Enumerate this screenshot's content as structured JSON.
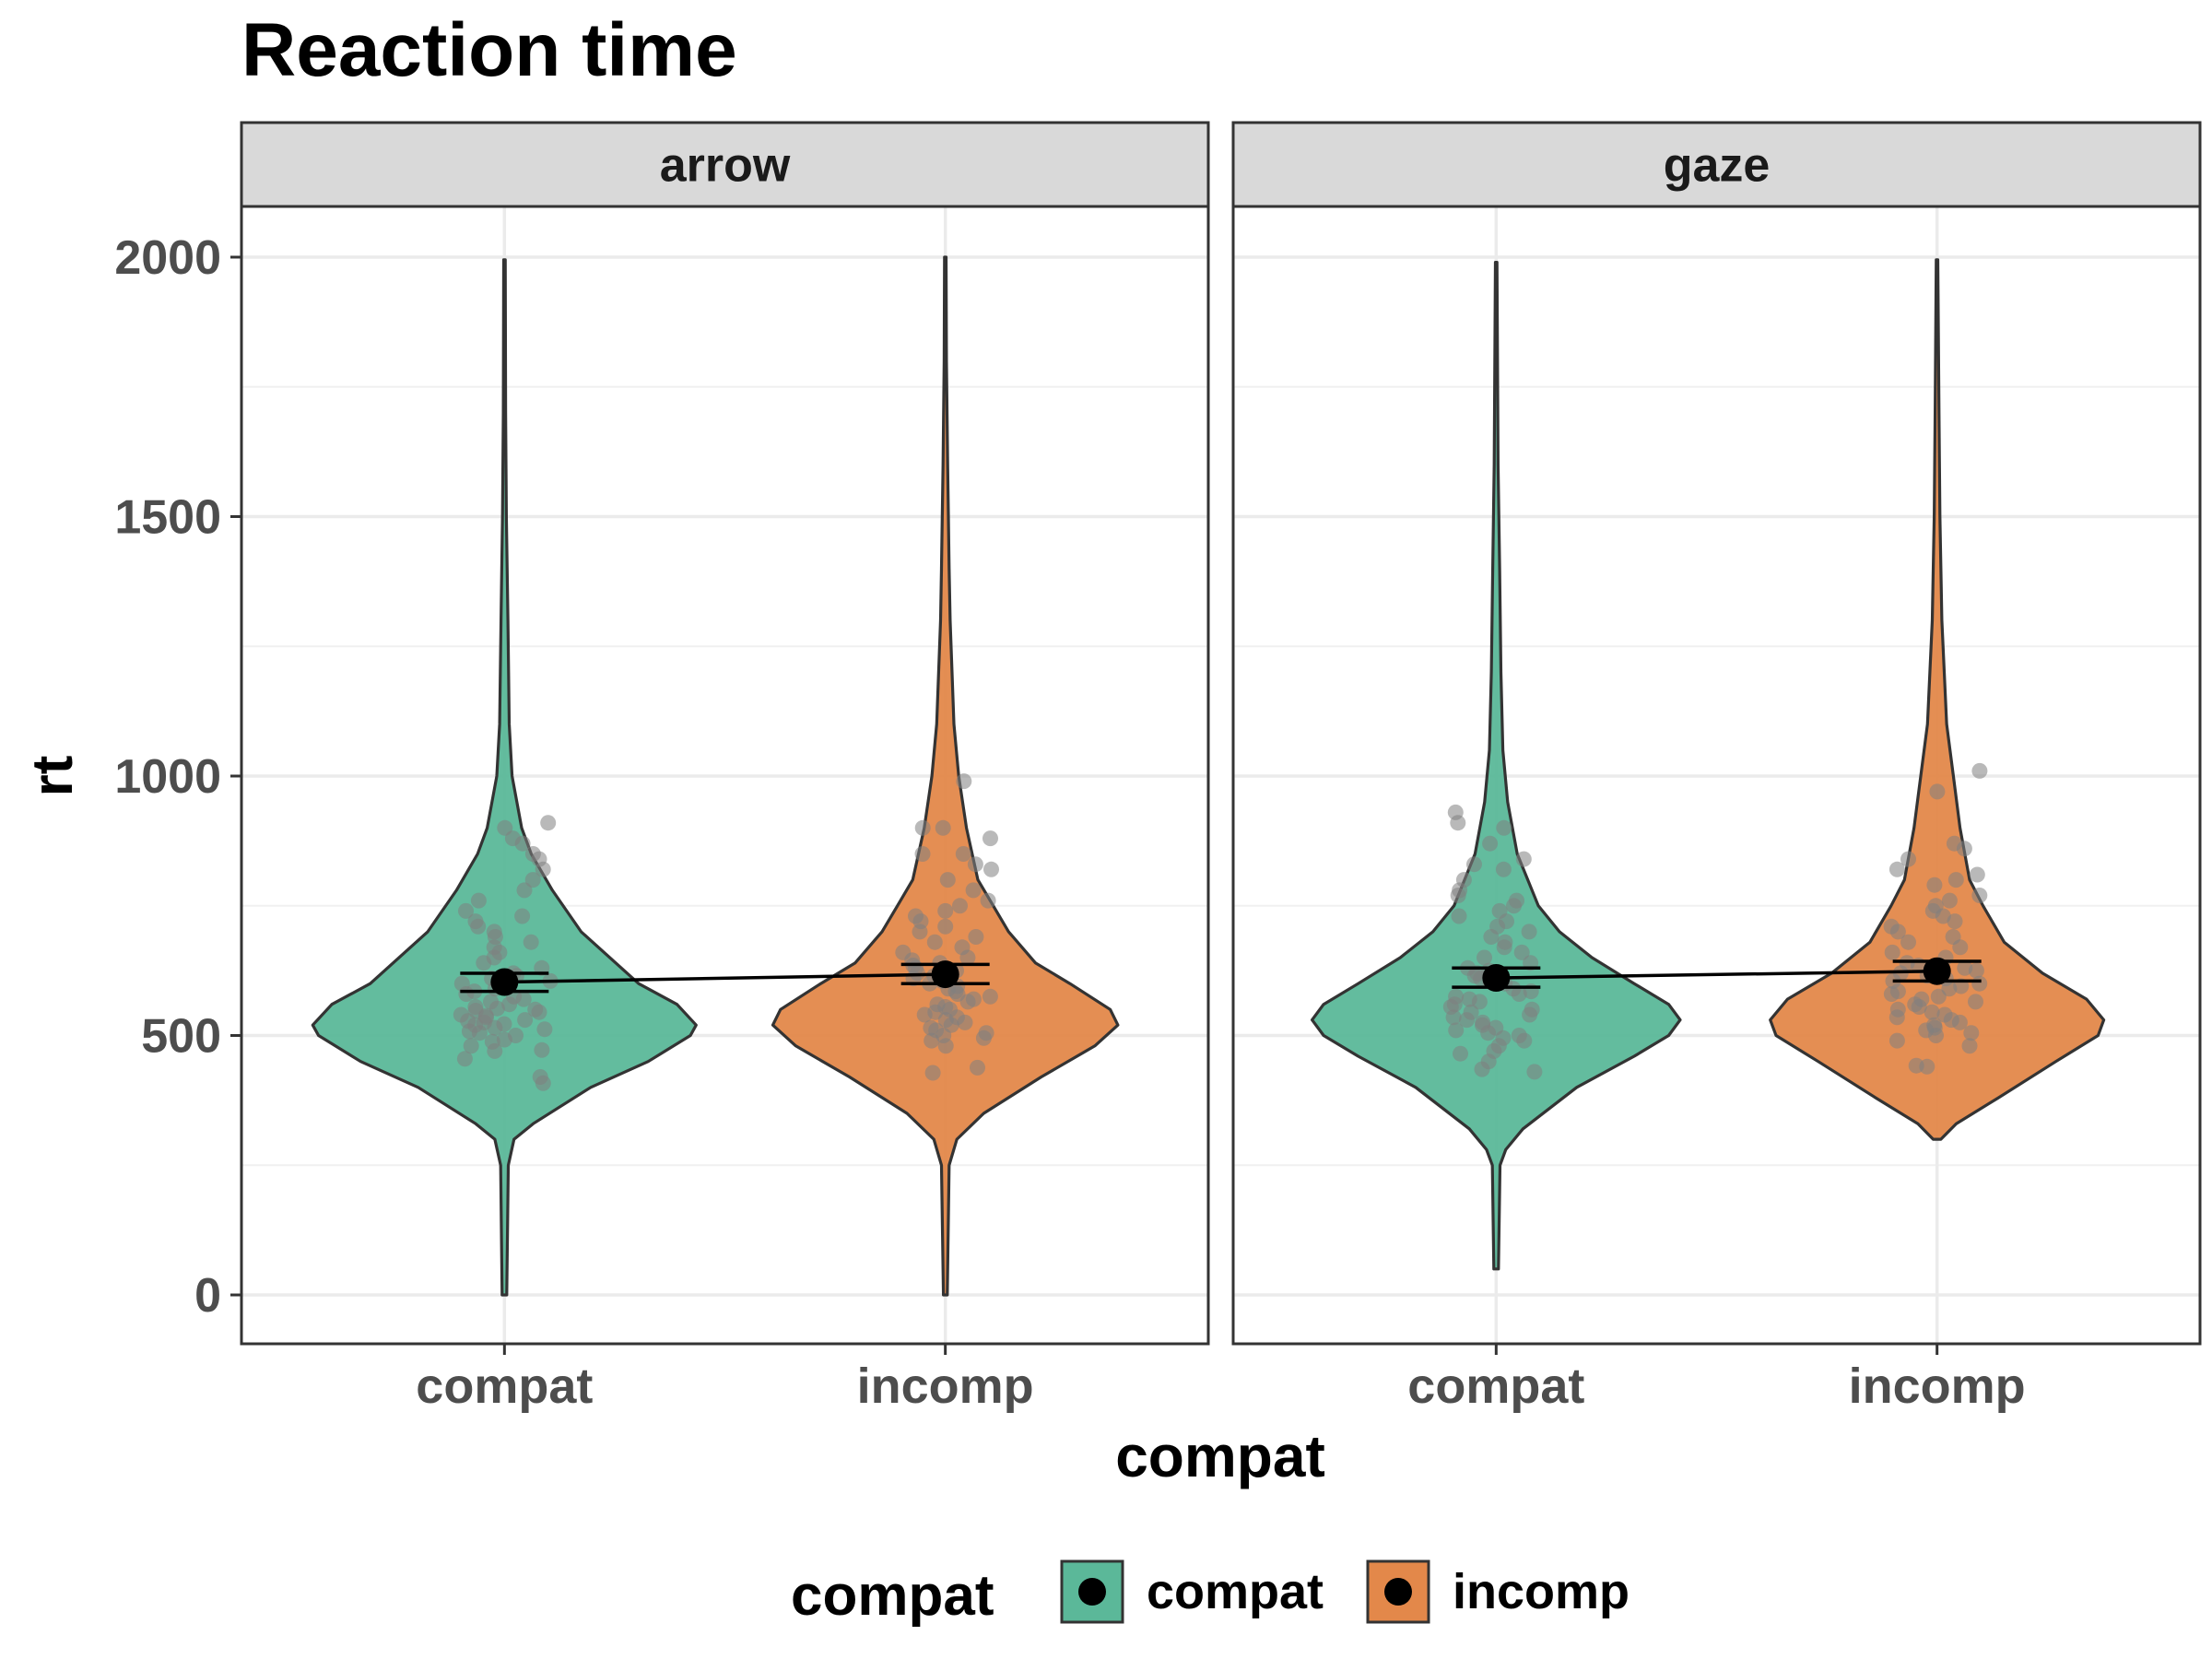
{
  "chart_data": {
    "type": "violin",
    "title": "Reaction time",
    "xlabel": "compat",
    "ylabel": "rt",
    "ylim": [
      -100,
      2100
    ],
    "yticks": [
      0,
      500,
      1000,
      1500,
      2000
    ],
    "categories": [
      "compat",
      "incomp"
    ],
    "colors": {
      "compat": "#5BB899",
      "incomp": "#E3884A"
    },
    "legend": {
      "title": "compat",
      "position": "bottom",
      "entries": [
        "compat",
        "incomp"
      ]
    },
    "panels": [
      {
        "label": "arrow",
        "groups": [
          {
            "category": "compat",
            "min": 0,
            "max": 1995,
            "mean": 603,
            "ci": [
              585,
              620
            ],
            "profile": [
              [
                0,
                0.012
              ],
              [
                250,
                0.02
              ],
              [
                300,
                0.05
              ],
              [
                330,
                0.15
              ],
              [
                400,
                0.45
              ],
              [
                450,
                0.75
              ],
              [
                500,
                0.97
              ],
              [
                520,
                1.0
              ],
              [
                560,
                0.9
              ],
              [
                600,
                0.7
              ],
              [
                700,
                0.4
              ],
              [
                780,
                0.25
              ],
              [
                850,
                0.14
              ],
              [
                900,
                0.09
              ],
              [
                1000,
                0.04
              ],
              [
                1100,
                0.025
              ],
              [
                1300,
                0.018
              ],
              [
                1500,
                0.01
              ],
              [
                1700,
                0.006
              ],
              [
                1995,
                0.004
              ]
            ],
            "points": [
              420,
              408,
              455,
              470,
              472,
              480,
              488,
              492,
              500,
              505,
              508,
              512,
              515,
              520,
              522,
              525,
              528,
              530,
              535,
              538,
              540,
              545,
              548,
              550,
              552,
              555,
              560,
              565,
              570,
              575,
              580,
              585,
              590,
              600,
              605,
              610,
              615,
              620,
              630,
              640,
              650,
              660,
              670,
              680,
              690,
              700,
              710,
              720,
              730,
              740,
              760,
              780,
              800,
              820,
              840,
              850,
              870,
              880,
              900,
              910
            ]
          },
          {
            "category": "incomp",
            "min": 0,
            "max": 2000,
            "mean": 618,
            "ci": [
              600,
              637
            ],
            "profile": [
              [
                0,
                0.01
              ],
              [
                250,
                0.02
              ],
              [
                300,
                0.06
              ],
              [
                350,
                0.2
              ],
              [
                420,
                0.5
              ],
              [
                480,
                0.78
              ],
              [
                520,
                0.9
              ],
              [
                550,
                0.86
              ],
              [
                600,
                0.65
              ],
              [
                640,
                0.47
              ],
              [
                700,
                0.33
              ],
              [
                750,
                0.25
              ],
              [
                800,
                0.17
              ],
              [
                900,
                0.11
              ],
              [
                1000,
                0.07
              ],
              [
                1100,
                0.045
              ],
              [
                1300,
                0.025
              ],
              [
                1400,
                0.02
              ],
              [
                1600,
                0.012
              ],
              [
                1800,
                0.006
              ],
              [
                2000,
                0.004
              ]
            ],
            "points": [
              428,
              438,
              480,
              490,
              495,
              500,
              505,
              510,
              515,
              520,
              525,
              530,
              535,
              540,
              545,
              550,
              555,
              560,
              565,
              570,
              575,
              580,
              585,
              590,
              595,
              600,
              605,
              610,
              615,
              620,
              625,
              630,
              635,
              640,
              645,
              650,
              660,
              670,
              680,
              690,
              700,
              710,
              720,
              730,
              740,
              750,
              760,
              780,
              800,
              820,
              830,
              850,
              850,
              880,
              900,
              900,
              990
            ]
          }
        ]
      },
      {
        "label": "gaze",
        "groups": [
          {
            "category": "compat",
            "min": 50,
            "max": 1990,
            "mean": 611,
            "ci": [
              593,
              630
            ],
            "profile": [
              [
                50,
                0.012
              ],
              [
                250,
                0.02
              ],
              [
                280,
                0.05
              ],
              [
                320,
                0.14
              ],
              [
                400,
                0.42
              ],
              [
                460,
                0.72
              ],
              [
                500,
                0.9
              ],
              [
                530,
                0.96
              ],
              [
                560,
                0.9
              ],
              [
                600,
                0.72
              ],
              [
                650,
                0.5
              ],
              [
                700,
                0.33
              ],
              [
                750,
                0.22
              ],
              [
                850,
                0.11
              ],
              [
                950,
                0.06
              ],
              [
                1050,
                0.035
              ],
              [
                1200,
                0.025
              ],
              [
                1400,
                0.018
              ],
              [
                1600,
                0.01
              ],
              [
                1990,
                0.004
              ]
            ],
            "points": [
              430,
              435,
              450,
              465,
              470,
              480,
              490,
              495,
              500,
              505,
              510,
              515,
              520,
              525,
              530,
              535,
              540,
              545,
              550,
              555,
              560,
              565,
              570,
              575,
              580,
              585,
              590,
              600,
              605,
              610,
              615,
              620,
              625,
              630,
              640,
              650,
              660,
              670,
              680,
              690,
              700,
              710,
              720,
              730,
              740,
              750,
              760,
              770,
              780,
              800,
              820,
              830,
              840,
              870,
              900,
              910,
              930
            ]
          },
          {
            "category": "incomp",
            "min": 300,
            "max": 1995,
            "mean": 624,
            "ci": [
              605,
              643
            ],
            "profile": [
              [
                300,
                0.02
              ],
              [
                330,
                0.1
              ],
              [
                380,
                0.32
              ],
              [
                450,
                0.62
              ],
              [
                500,
                0.84
              ],
              [
                530,
                0.87
              ],
              [
                570,
                0.78
              ],
              [
                620,
                0.55
              ],
              [
                680,
                0.35
              ],
              [
                750,
                0.24
              ],
              [
                800,
                0.17
              ],
              [
                900,
                0.12
              ],
              [
                1000,
                0.085
              ],
              [
                1100,
                0.05
              ],
              [
                1300,
                0.025
              ],
              [
                1500,
                0.015
              ],
              [
                1700,
                0.01
              ],
              [
                1995,
                0.004
              ]
            ],
            "points": [
              440,
              442,
              480,
              490,
              500,
              505,
              510,
              515,
              520,
              525,
              530,
              535,
              540,
              545,
              550,
              555,
              560,
              565,
              570,
              575,
              580,
              585,
              590,
              595,
              600,
              605,
              610,
              615,
              620,
              625,
              630,
              635,
              640,
              650,
              660,
              670,
              680,
              690,
              700,
              710,
              720,
              730,
              740,
              750,
              760,
              770,
              790,
              800,
              810,
              820,
              840,
              860,
              870,
              970,
              1010
            ]
          }
        ]
      }
    ]
  }
}
